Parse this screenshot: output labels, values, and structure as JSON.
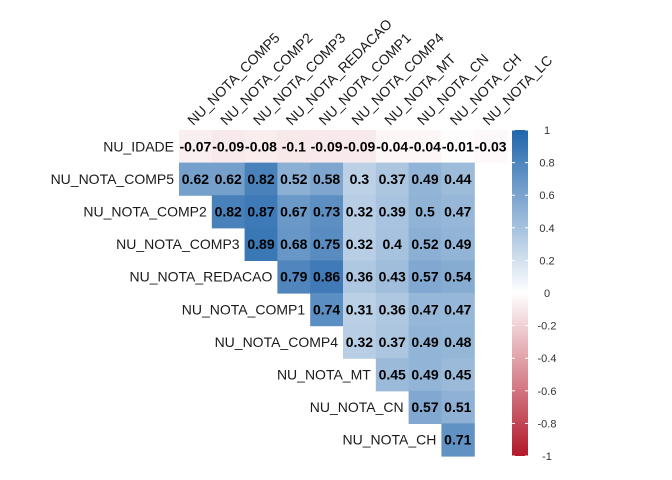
{
  "chart_data": {
    "type": "heatmap",
    "title": "",
    "variables": [
      "NU_IDADE",
      "NU_NOTA_COMP5",
      "NU_NOTA_COMP2",
      "NU_NOTA_COMP3",
      "NU_NOTA_REDACAO",
      "NU_NOTA_COMP1",
      "NU_NOTA_COMP4",
      "NU_NOTA_MT",
      "NU_NOTA_CN",
      "NU_NOTA_CH",
      "NU_NOTA_LC"
    ],
    "rows": [
      "NU_IDADE",
      "NU_NOTA_COMP5",
      "NU_NOTA_COMP2",
      "NU_NOTA_COMP3",
      "NU_NOTA_REDACAO",
      "NU_NOTA_COMP1",
      "NU_NOTA_COMP4",
      "NU_NOTA_MT",
      "NU_NOTA_CN",
      "NU_NOTA_CH"
    ],
    "columns": [
      "NU_NOTA_COMP5",
      "NU_NOTA_COMP2",
      "NU_NOTA_COMP3",
      "NU_NOTA_REDACAO",
      "NU_NOTA_COMP1",
      "NU_NOTA_COMP4",
      "NU_NOTA_MT",
      "NU_NOTA_CN",
      "NU_NOTA_CH",
      "NU_NOTA_LC"
    ],
    "matrix": [
      [
        -0.07,
        -0.09,
        -0.08,
        -0.1,
        -0.09,
        -0.09,
        -0.04,
        -0.04,
        -0.01,
        -0.03
      ],
      [
        0.62,
        0.62,
        0.82,
        0.52,
        0.58,
        0.3,
        0.37,
        0.49,
        0.44
      ],
      [
        0.82,
        0.87,
        0.67,
        0.73,
        0.32,
        0.39,
        0.5,
        0.47
      ],
      [
        0.89,
        0.68,
        0.75,
        0.32,
        0.4,
        0.52,
        0.49
      ],
      [
        0.79,
        0.86,
        0.36,
        0.43,
        0.57,
        0.54
      ],
      [
        0.74,
        0.31,
        0.36,
        0.47,
        0.47
      ],
      [
        0.32,
        0.37,
        0.49,
        0.48
      ],
      [
        0.45,
        0.49,
        0.45
      ],
      [
        0.57,
        0.51
      ],
      [
        0.71
      ]
    ],
    "layout": "upper-triangle",
    "value_range": [
      -1,
      1
    ],
    "legend": {
      "position": "right",
      "ticks": [
        1,
        0.8,
        0.6,
        0.4,
        0.2,
        0,
        -0.2,
        -0.4,
        -0.6,
        -0.8,
        -1
      ]
    },
    "colors": {
      "negative": "#B2182B",
      "neutral": "#FFFFFF",
      "positive": "#2166AC"
    },
    "grid": false
  }
}
